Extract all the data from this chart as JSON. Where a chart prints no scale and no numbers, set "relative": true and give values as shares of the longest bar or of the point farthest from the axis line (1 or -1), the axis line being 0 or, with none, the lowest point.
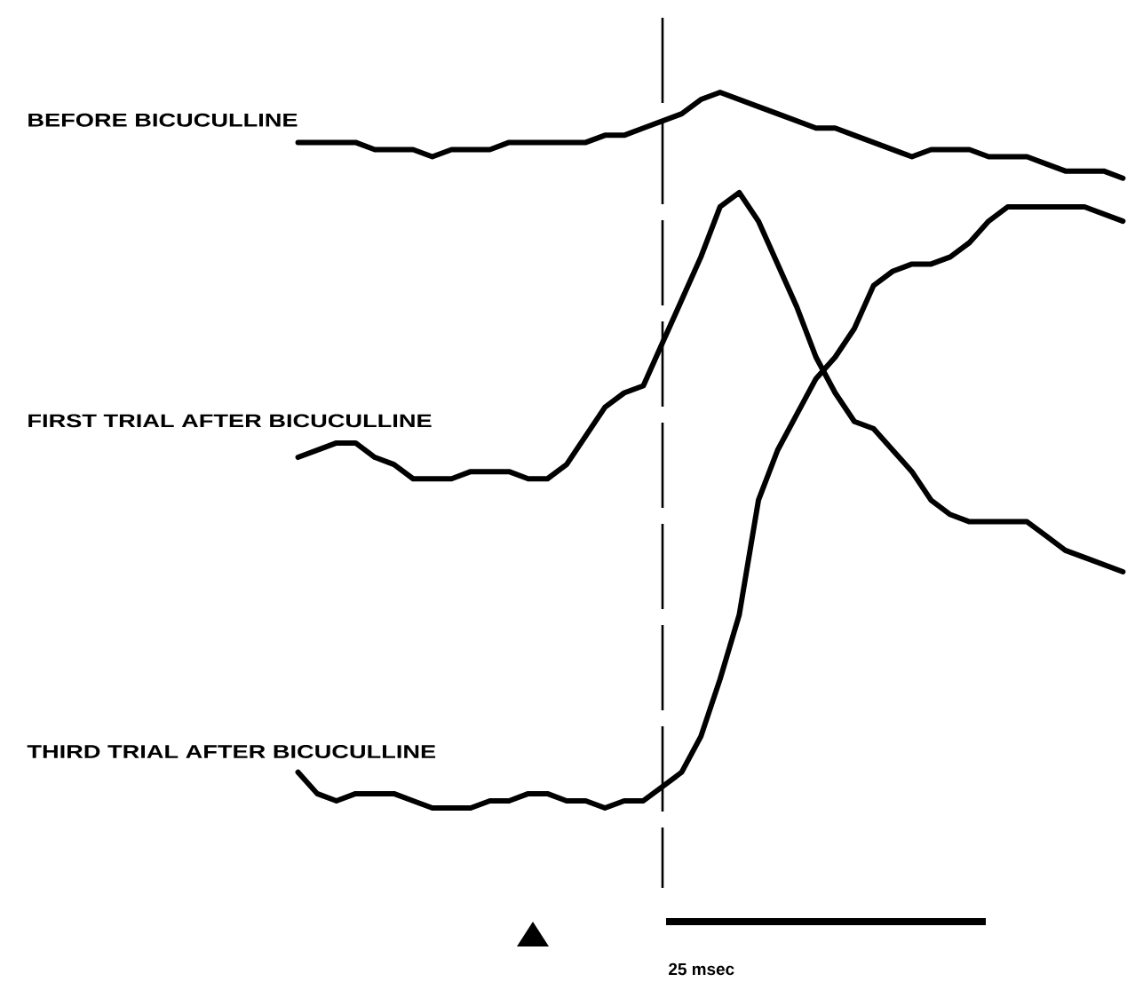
{
  "chart_data": {
    "type": "line",
    "relative": true,
    "categories": [
      null,
      null,
      null,
      null,
      null,
      null,
      null,
      null,
      null,
      null,
      null,
      null,
      null,
      null,
      null,
      null,
      null,
      null,
      null,
      null,
      null,
      null,
      null,
      null,
      null,
      null,
      null,
      null,
      null,
      null,
      null,
      null,
      null,
      null,
      null,
      null,
      null,
      null,
      null,
      null,
      null,
      null,
      null,
      null
    ],
    "series": [
      {
        "name": "BEFORE BICUCULLINE",
        "color": "#000000",
        "values": [
          0.93,
          0.93,
          0.93,
          0.93,
          0.92,
          0.92,
          0.92,
          0.91,
          0.92,
          0.92,
          0.92,
          0.93,
          0.93,
          0.93,
          0.93,
          0.93,
          0.94,
          0.94,
          0.95,
          0.96,
          0.97,
          0.99,
          1.0,
          0.99,
          0.98,
          0.97,
          0.96,
          0.95,
          0.95,
          0.94,
          0.93,
          0.92,
          0.91,
          0.92,
          0.92,
          0.92,
          0.91,
          0.91,
          0.91,
          0.9,
          0.89,
          0.89,
          0.89,
          0.88
        ]
      },
      {
        "name": "FIRST TRIAL AFTER BICUCULLINE",
        "color": "#000000",
        "values": [
          0.49,
          0.5,
          0.51,
          0.51,
          0.49,
          0.48,
          0.46,
          0.46,
          0.46,
          0.47,
          0.47,
          0.47,
          0.46,
          0.46,
          0.48,
          0.52,
          0.56,
          0.58,
          0.59,
          0.65,
          0.71,
          0.77,
          0.84,
          0.86,
          0.82,
          0.76,
          0.7,
          0.63,
          0.58,
          0.54,
          0.53,
          0.5,
          0.47,
          0.43,
          0.41,
          0.4,
          0.4,
          0.4,
          0.4,
          0.38,
          0.36,
          0.35,
          0.34,
          0.33
        ]
      },
      {
        "name": "THIRD TRIAL AFTER BICUCULLINE",
        "color": "#000000",
        "values": [
          0.05,
          0.02,
          0.01,
          0.02,
          0.02,
          0.02,
          0.01,
          0.0,
          0.0,
          0.0,
          0.01,
          0.01,
          0.02,
          0.02,
          0.01,
          0.01,
          0.0,
          0.01,
          0.01,
          0.03,
          0.05,
          0.1,
          0.18,
          0.27,
          0.43,
          0.5,
          0.55,
          0.6,
          0.63,
          0.67,
          0.73,
          0.75,
          0.76,
          0.76,
          0.77,
          0.79,
          0.82,
          0.84,
          0.84,
          0.84,
          0.84,
          0.84,
          0.83,
          0.82
        ]
      }
    ],
    "annotations": [
      "25 msec"
    ]
  }
}
